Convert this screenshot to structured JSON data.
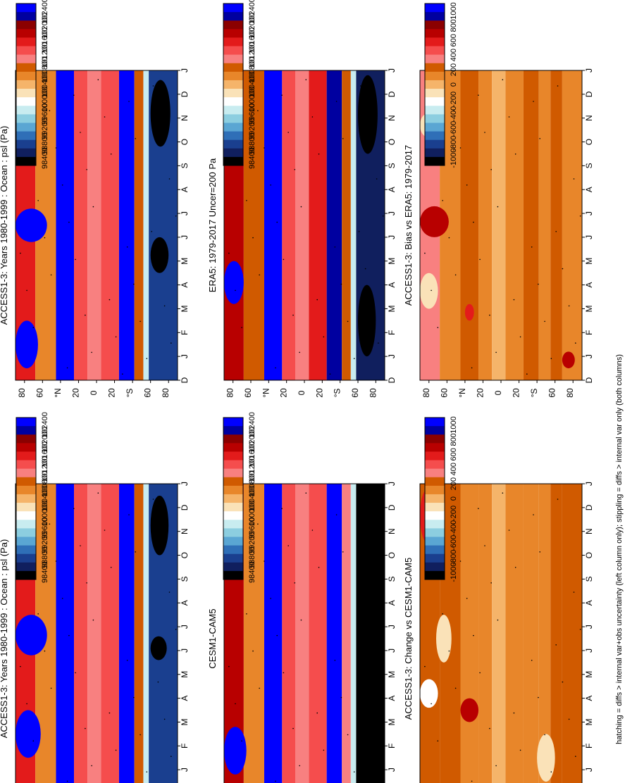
{
  "figure": {
    "footnote": "hatching = diffs > internal var+obs uncertainty (left column only); stippling = diffs > internal var only (both columns)"
  },
  "chart_data": [
    {
      "type": "heatmap",
      "id": "p1",
      "title": "ACCESS1-3: Years 1980-1999 : Ocean : psl (Pa)",
      "x_categories": [
        "D",
        "J",
        "F",
        "M",
        "A",
        "M",
        "J",
        "J",
        "A",
        "S",
        "O",
        "N",
        "D",
        "J"
      ],
      "y_ticks": [
        "80",
        "60",
        "°N",
        "20",
        "0",
        "20",
        "°S",
        "60",
        "80"
      ],
      "colorbar": {
        "labels": [
          "102400",
          "102000",
          "101600",
          "101200",
          "100800",
          "100400",
          "100000",
          "99600",
          "99200",
          "98800",
          "98400"
        ]
      },
      "latitude_bands": [
        {
          "from": 90,
          "to": 68,
          "value": 101400
        },
        {
          "from": 68,
          "to": 45,
          "value": 100700
        },
        {
          "from": 45,
          "to": 25,
          "value": 102300
        },
        {
          "from": 25,
          "to": 10,
          "value": 101200
        },
        {
          "from": 10,
          "to": -5,
          "value": 101100
        },
        {
          "from": -5,
          "to": -25,
          "value": 101300
        },
        {
          "from": -25,
          "to": -42,
          "value": 102200
        },
        {
          "from": -42,
          "to": -52,
          "value": 100900
        },
        {
          "from": -52,
          "to": -58,
          "value": 99800
        },
        {
          "from": -58,
          "to": -90,
          "value": 99000
        }
      ],
      "features": [
        {
          "month_from": 1.5,
          "month_to": 3.5,
          "lat_from": 90,
          "lat_to": 62,
          "value": 102400
        },
        {
          "month_from": 5.8,
          "month_to": 7.5,
          "lat_from": 90,
          "lat_to": 55,
          "value": 102400
        },
        {
          "month_from": 10,
          "month_to": 12.5,
          "lat_from": -60,
          "lat_to": -80,
          "value": 98400
        },
        {
          "month_from": 5.6,
          "month_to": 6.6,
          "lat_from": -60,
          "lat_to": -78,
          "value": 98400
        }
      ]
    },
    {
      "type": "heatmap",
      "id": "p2",
      "title": "ACCESS1-3: Years 1980-1999 : Ocean : psl (Pa)",
      "x_categories": [
        "D",
        "J",
        "F",
        "M",
        "A",
        "M",
        "J",
        "J",
        "A",
        "S",
        "O",
        "N",
        "D",
        "J"
      ],
      "y_ticks": [
        "80",
        "60",
        "°N",
        "20",
        "0",
        "20",
        "°S",
        "60",
        "80"
      ],
      "colorbar": {
        "labels": [
          "102400",
          "102000",
          "101600",
          "101200",
          "100800",
          "100400",
          "100000",
          "99600",
          "99200",
          "98800",
          "98400"
        ]
      },
      "latitude_bands": [
        {
          "from": 90,
          "to": 68,
          "value": 101500
        },
        {
          "from": 68,
          "to": 45,
          "value": 100700
        },
        {
          "from": 45,
          "to": 25,
          "value": 102300
        },
        {
          "from": 25,
          "to": 10,
          "value": 101200
        },
        {
          "from": 10,
          "to": -5,
          "value": 101100
        },
        {
          "from": -5,
          "to": -25,
          "value": 101300
        },
        {
          "from": -25,
          "to": -42,
          "value": 102200
        },
        {
          "from": -42,
          "to": -52,
          "value": 100900
        },
        {
          "from": -52,
          "to": -58,
          "value": 99800
        },
        {
          "from": -58,
          "to": -90,
          "value": 99000
        }
      ],
      "features": [
        {
          "month_from": 0.5,
          "month_to": 2.5,
          "lat_from": 90,
          "lat_to": 65,
          "value": 102400
        },
        {
          "month_from": 5.8,
          "month_to": 7.2,
          "lat_from": 90,
          "lat_to": 55,
          "value": 102400
        },
        {
          "month_from": 9.8,
          "month_to": 12.6,
          "lat_from": -60,
          "lat_to": -82,
          "value": 98400
        },
        {
          "month_from": 4.5,
          "month_to": 6.0,
          "lat_from": -60,
          "lat_to": -80,
          "value": 98400
        }
      ]
    },
    {
      "type": "heatmap",
      "id": "p3",
      "title": "ERA5: 1979-2017 Uncer=200 Pa",
      "x_categories": [
        "D",
        "J",
        "F",
        "M",
        "A",
        "M",
        "J",
        "J",
        "A",
        "S",
        "O",
        "N",
        "D",
        "J"
      ],
      "y_ticks": [
        "80",
        "60",
        "°N",
        "20",
        "0",
        "20",
        "°S",
        "60",
        "80"
      ],
      "colorbar": {
        "labels": [
          "102400",
          "102000",
          "101600",
          "101200",
          "100800",
          "100400",
          "100000",
          "99600",
          "99200",
          "98800",
          "98400"
        ]
      },
      "latitude_bands": [
        {
          "from": 90,
          "to": 68,
          "value": 101700
        },
        {
          "from": 68,
          "to": 45,
          "value": 100900
        },
        {
          "from": 45,
          "to": 25,
          "value": 102200
        },
        {
          "from": 25,
          "to": 10,
          "value": 101300
        },
        {
          "from": 10,
          "to": -5,
          "value": 101100
        },
        {
          "from": -5,
          "to": -25,
          "value": 101400
        },
        {
          "from": -25,
          "to": -42,
          "value": 102000
        },
        {
          "from": -42,
          "to": -52,
          "value": 100900
        },
        {
          "from": -52,
          "to": -58,
          "value": 99800
        },
        {
          "from": -58,
          "to": -90,
          "value": 98800
        }
      ],
      "features": [
        {
          "month_from": 3.2,
          "month_to": 5.0,
          "lat_from": 90,
          "lat_to": 68,
          "value": 102400
        },
        {
          "month_from": 9.5,
          "month_to": 12.8,
          "lat_from": -60,
          "lat_to": -82,
          "value": 98400
        },
        {
          "month_from": 1.0,
          "month_to": 4.0,
          "lat_from": -60,
          "lat_to": -80,
          "value": 98400
        }
      ]
    },
    {
      "type": "heatmap",
      "id": "p4",
      "title": "CESM1-CAM5",
      "x_categories": [
        "D",
        "J",
        "F",
        "M",
        "A",
        "M",
        "J",
        "J",
        "A",
        "S",
        "O",
        "N",
        "D",
        "J"
      ],
      "y_ticks": [
        "80",
        "60",
        "°N",
        "20",
        "0",
        "20",
        "°S",
        "60",
        "80"
      ],
      "colorbar": {
        "labels": [
          "102400",
          "102000",
          "101600",
          "101200",
          "100800",
          "100400",
          "100000",
          "99600",
          "99200",
          "98800",
          "98400"
        ]
      },
      "latitude_bands": [
        {
          "from": 90,
          "to": 68,
          "value": 101600
        },
        {
          "from": 68,
          "to": 45,
          "value": 100700
        },
        {
          "from": 45,
          "to": 25,
          "value": 102400
        },
        {
          "from": 25,
          "to": 10,
          "value": 101300
        },
        {
          "from": 10,
          "to": -5,
          "value": 101100
        },
        {
          "from": -5,
          "to": -25,
          "value": 101300
        },
        {
          "from": -25,
          "to": -42,
          "value": 102300
        },
        {
          "from": -42,
          "to": -52,
          "value": 101000
        },
        {
          "from": -52,
          "to": -58,
          "value": 99800
        },
        {
          "from": -58,
          "to": -90,
          "value": 98600
        }
      ],
      "features": [
        {
          "month_from": 0.8,
          "month_to": 2.8,
          "lat_from": 90,
          "lat_to": 65,
          "value": 102400
        },
        {
          "month_from": 3.0,
          "month_to": 12.8,
          "lat_from": -62,
          "lat_to": -82,
          "value": 98400
        }
      ]
    },
    {
      "type": "heatmap",
      "id": "p5",
      "title": "ACCESS1-3: Bias vs ERA5: 1979-2017",
      "x_categories": [
        "D",
        "J",
        "F",
        "M",
        "A",
        "M",
        "J",
        "J",
        "A",
        "S",
        "O",
        "N",
        "D",
        "J"
      ],
      "y_ticks": [
        "80",
        "60",
        "°N",
        "20",
        "0",
        "20",
        "°S",
        "60",
        "80"
      ],
      "colorbar": {
        "labels": [
          "1000",
          "800",
          "600",
          "400",
          "200",
          "0",
          "-200",
          "-400",
          "-600",
          "-800",
          "-1000"
        ]
      },
      "latitude_bands": [
        {
          "from": 90,
          "to": 68,
          "value": 300
        },
        {
          "from": 68,
          "to": 45,
          "value": 100
        },
        {
          "from": 45,
          "to": 25,
          "value": 250
        },
        {
          "from": 25,
          "to": 10,
          "value": 150
        },
        {
          "from": 10,
          "to": -5,
          "value": 50
        },
        {
          "from": -5,
          "to": -25,
          "value": 150
        },
        {
          "from": -25,
          "to": -42,
          "value": 250
        },
        {
          "from": -42,
          "to": -55,
          "value": 100
        },
        {
          "from": -55,
          "to": -68,
          "value": 200
        },
        {
          "from": -68,
          "to": -90,
          "value": 150
        }
      ],
      "features": [
        {
          "month_from": 3.0,
          "month_to": 4.5,
          "lat_from": 90,
          "lat_to": 70,
          "value": -150
        },
        {
          "month_from": 6.0,
          "month_to": 7.3,
          "lat_from": 90,
          "lat_to": 58,
          "value": 600
        },
        {
          "month_from": 10.2,
          "month_to": 11.2,
          "lat_from": 90,
          "lat_to": 72,
          "value": -150
        },
        {
          "month_from": 2.5,
          "month_to": 3.2,
          "lat_from": 40,
          "lat_to": 30,
          "value": 500
        },
        {
          "month_from": 0.5,
          "month_to": 1.2,
          "lat_from": -68,
          "lat_to": -82,
          "value": 600
        }
      ]
    },
    {
      "type": "heatmap",
      "id": "p6",
      "title": "ACCESS1-3: Change vs CESM1-CAM5",
      "x_categories": [
        "D",
        "J",
        "F",
        "M",
        "A",
        "M",
        "J",
        "J",
        "A",
        "S",
        "O",
        "N",
        "D",
        "J"
      ],
      "y_ticks": [
        "80",
        "60",
        "°N",
        "20",
        "0",
        "20",
        "°S",
        "60",
        "80"
      ],
      "colorbar": {
        "labels": [
          "1000",
          "800",
          "600",
          "400",
          "200",
          "0",
          "-200",
          "-400",
          "-600",
          "-800",
          "-1000"
        ]
      },
      "latitude_bands": [
        {
          "from": 90,
          "to": 68,
          "value": 250
        },
        {
          "from": 68,
          "to": 45,
          "value": 200
        },
        {
          "from": 45,
          "to": 25,
          "value": 150
        },
        {
          "from": 25,
          "to": 10,
          "value": 100
        },
        {
          "from": 10,
          "to": -5,
          "value": 50
        },
        {
          "from": -5,
          "to": -25,
          "value": 100
        },
        {
          "from": -25,
          "to": -42,
          "value": 100
        },
        {
          "from": -42,
          "to": -55,
          "value": 150
        },
        {
          "from": -55,
          "to": -68,
          "value": 200
        },
        {
          "from": -68,
          "to": -90,
          "value": 250
        }
      ],
      "features": [
        {
          "month_from": 3.6,
          "month_to": 4.8,
          "lat_from": 90,
          "lat_to": 70,
          "value": -250
        },
        {
          "month_from": 5.5,
          "month_to": 7.5,
          "lat_from": 72,
          "lat_to": 55,
          "value": -150
        },
        {
          "month_from": 3.0,
          "month_to": 4.0,
          "lat_from": 45,
          "lat_to": 25,
          "value": 600
        },
        {
          "month_from": 10.5,
          "month_to": 12.8,
          "lat_from": 90,
          "lat_to": 72,
          "value": 500
        },
        {
          "month_from": 0.5,
          "month_to": 2.5,
          "lat_from": -40,
          "lat_to": -60,
          "value": -150
        }
      ]
    }
  ]
}
